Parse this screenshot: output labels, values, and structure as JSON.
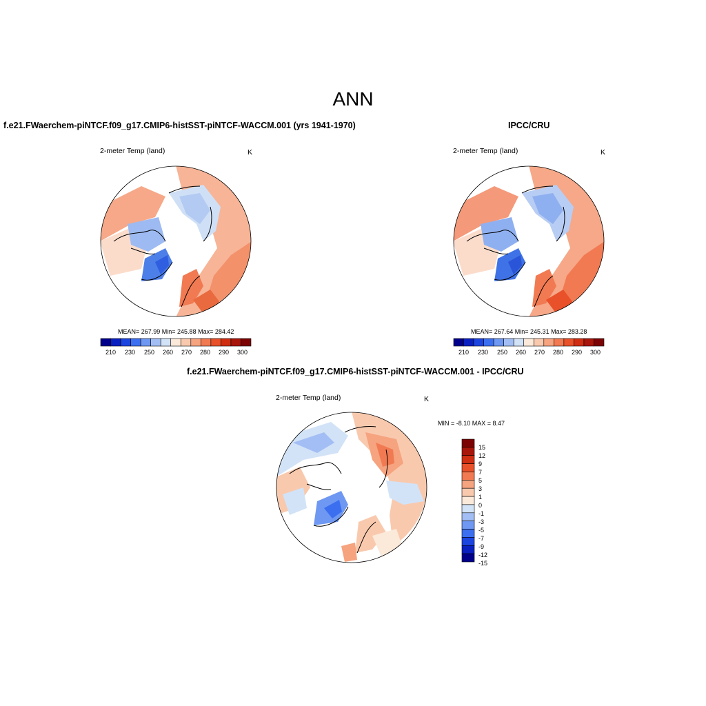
{
  "figure": {
    "season_title": "ANN"
  },
  "panels": [
    {
      "case_title": "f.e21.FWaerchem-piNTCF.f09_g17.CMIP6-histSST-piNTCF-WACCM.001 (yrs 1941-1970)",
      "variable": "2-meter Temp (land)",
      "units": "K",
      "stats": "MEAN= 267.99  Min= 245.88  Max= 284.42",
      "colorbar_labels": [
        "210",
        "230",
        "250",
        "260",
        "270",
        "280",
        "290",
        "300"
      ]
    },
    {
      "case_title": "IPCC/CRU",
      "variable": "2-meter Temp (land)",
      "units": "K",
      "stats": "MEAN= 267.64  Min= 245.31  Max= 283.28",
      "colorbar_labels": [
        "210",
        "230",
        "250",
        "260",
        "270",
        "280",
        "290",
        "300"
      ]
    },
    {
      "case_title": "f.e21.FWaerchem-piNTCF.f09_g17.CMIP6-histSST-piNTCF-WACCM.001 - IPCC/CRU",
      "variable": "2-meter Temp (land)",
      "units": "K",
      "stats": "MIN =  -8.10 MAX =   8.47",
      "colorbar_labels": [
        "15",
        "12",
        "9",
        "7",
        "5",
        "3",
        "1",
        "0",
        "-1",
        "-3",
        "-5",
        "-7",
        "-9",
        "-12",
        "-15"
      ]
    }
  ],
  "colors": {
    "abs_scale": [
      "#00008b",
      "#0a1fbf",
      "#1c45e0",
      "#3b6ff0",
      "#6f98f2",
      "#a3bef4",
      "#d2e3f7",
      "#fbe9d9",
      "#f9c9ae",
      "#f6a37f",
      "#f17a52",
      "#e8512a",
      "#cf2e12",
      "#a8150a",
      "#7c0303"
    ],
    "diff_scale": [
      "#7c0303",
      "#a8150a",
      "#cf2e12",
      "#e8512a",
      "#f17a52",
      "#f6a37f",
      "#f9c9ae",
      "#fbe9d9",
      "#d2e3f7",
      "#a3bef4",
      "#6f98f2",
      "#3b6ff0",
      "#1c45e0",
      "#0a1fbf",
      "#00008b"
    ]
  }
}
